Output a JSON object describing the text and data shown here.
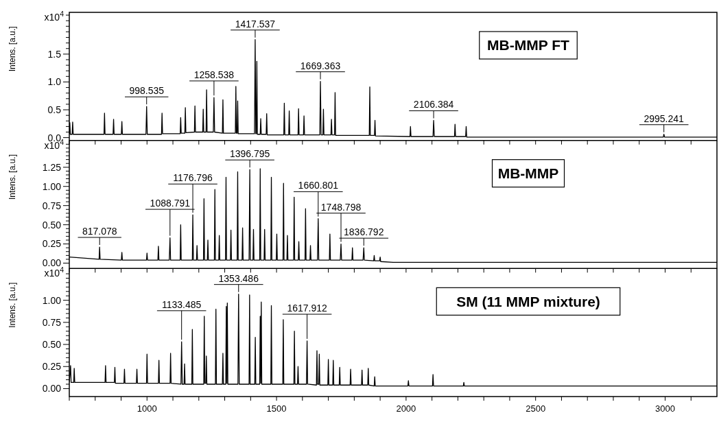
{
  "chart_data": [
    {
      "type": "line",
      "title": "MB-MMP FT",
      "ylabel": "Intens. [a.u.]",
      "tick_labels": "y",
      "annotations": [
        "x10$^{4}$",
        {
          "text": "998.535",
          "x": 998.535,
          "y": 0.56
        },
        {
          "text": "1258.538",
          "x": 1258.538,
          "y": 0.72
        },
        {
          "text": "1417.537",
          "x": 1417.537,
          "y": 1.76
        },
        {
          "text": "1669.363",
          "x": 1669.363,
          "y": 1.01
        },
        {
          "text": "2106.384",
          "x": 2106.384,
          "y": 0.31
        },
        {
          "text": "2995.241",
          "x": 2995.241,
          "y": 0.06
        }
      ],
      "xlim": [
        700,
        3200
      ],
      "xticks": [
        {
          "value": 700,
          "label": null
        },
        {
          "value": 800,
          "label": null
        },
        {
          "value": 900,
          "label": null
        },
        1000,
        {
          "value": 1100,
          "label": null
        },
        {
          "value": 1200,
          "label": null
        },
        {
          "value": 1300,
          "label": null
        },
        {
          "value": 1400,
          "label": null
        },
        1500,
        {
          "value": 1600,
          "label": null
        },
        {
          "value": 1700,
          "label": null
        },
        {
          "value": 1800,
          "label": null
        },
        {
          "value": 1900,
          "label": null
        },
        2000,
        {
          "value": 2100,
          "label": null
        },
        {
          "value": 2200,
          "label": null
        },
        {
          "value": 2300,
          "label": null
        },
        {
          "value": 2400,
          "label": null
        },
        2500,
        {
          "value": 2600,
          "label": null
        },
        {
          "value": 2700,
          "label": null
        },
        {
          "value": 2800,
          "label": null
        },
        {
          "value": 2900,
          "label": null
        },
        3000,
        {
          "value": 3100,
          "label": null
        }
      ],
      "ylim": [
        -0.05,
        2.25
      ],
      "yticks": [
        {
          "value": 0,
          "label": "0.0"
        },
        {
          "value": 0.1,
          "label": null
        },
        {
          "value": 0.2,
          "label": null
        },
        {
          "value": 0.3,
          "label": null
        },
        {
          "value": 0.4,
          "label": null
        },
        0.5,
        {
          "value": 0.6,
          "label": null
        },
        {
          "value": 0.7,
          "label": null
        },
        {
          "value": 0.8,
          "label": null
        },
        {
          "value": 0.9,
          "label": null
        },
        {
          "value": 1,
          "label": "1.0"
        },
        {
          "value": 1.1,
          "label": null
        },
        {
          "value": 1.2,
          "label": null
        },
        {
          "value": 1.3,
          "label": null
        },
        {
          "value": 1.4,
          "label": null
        },
        1.5,
        {
          "value": 1.6,
          "label": null
        },
        {
          "value": 1.7,
          "label": null
        },
        {
          "value": 1.8,
          "label": null
        },
        {
          "value": 1.9,
          "label": null
        },
        {
          "value": 2,
          "label": null
        },
        {
          "value": 2.1,
          "label": null
        },
        {
          "value": 2.2,
          "label": null
        }
      ],
      "x": [
        700,
        702,
        704,
        711,
        713,
        715,
        834,
        836,
        838,
        869,
        871,
        873,
        901,
        903,
        905,
        996,
        998.5,
        1001,
        1056,
        1058,
        1060,
        1128,
        1130,
        1132,
        1146,
        1148,
        1150,
        1183,
        1185,
        1187,
        1215,
        1217,
        1219,
        1228,
        1230,
        1232,
        1256,
        1258.5,
        1261,
        1291,
        1293,
        1295,
        1341,
        1343,
        1345,
        1348,
        1350,
        1352,
        1415,
        1417.5,
        1420,
        1422,
        1424,
        1426,
        1437,
        1439,
        1441,
        1460,
        1462,
        1464,
        1528,
        1530,
        1532,
        1547,
        1549,
        1551,
        1583,
        1585,
        1587,
        1604,
        1606,
        1608,
        1667,
        1669.4,
        1672,
        1679,
        1681,
        1683,
        1710,
        1712,
        1714,
        1724,
        1726,
        1728,
        1858,
        1860,
        1862,
        1878,
        1880,
        1882,
        2015,
        2017,
        2019,
        2104,
        2106.4,
        2109,
        2187,
        2189,
        2191,
        2230,
        2232,
        2234,
        2993,
        2995.2,
        2998,
        3200
      ],
      "series": [
        {
          "color": "#000000",
          "values": [
            0.06,
            0.27,
            0.06,
            0.06,
            0.28,
            0.06,
            0.06,
            0.44,
            0.06,
            0.06,
            0.33,
            0.06,
            0.06,
            0.29,
            0.06,
            0.06,
            0.56,
            0.06,
            0.06,
            0.44,
            0.07,
            0.07,
            0.36,
            0.08,
            0.08,
            0.54,
            0.09,
            0.1,
            0.57,
            0.1,
            0.1,
            0.51,
            0.1,
            0.1,
            0.86,
            0.1,
            0.1,
            0.72,
            0.1,
            0.08,
            0.68,
            0.08,
            0.08,
            0.92,
            0.08,
            0.08,
            0.66,
            0.07,
            0.07,
            1.76,
            0.07,
            0.07,
            1.37,
            0.06,
            0.06,
            0.34,
            0.06,
            0.06,
            0.43,
            0.05,
            0.05,
            0.62,
            0.05,
            0.05,
            0.48,
            0.05,
            0.05,
            0.52,
            0.05,
            0.05,
            0.39,
            0.05,
            0.05,
            1.01,
            0.05,
            0.05,
            0.51,
            0.05,
            0.05,
            0.33,
            0.05,
            0.05,
            0.81,
            0.04,
            0.04,
            0.91,
            0.04,
            0.04,
            0.31,
            0.03,
            0.02,
            0.2,
            0.02,
            0.02,
            0.31,
            0.02,
            0.02,
            0.24,
            0.02,
            0.02,
            0.2,
            0.01,
            0.01,
            0.06,
            0.01,
            0.01
          ]
        }
      ]
    },
    {
      "type": "line",
      "title": "MB-MMP",
      "ylabel": "Intens. [a.u.]",
      "tick_labels": "y",
      "annotations": [
        "x10$^{4}$",
        {
          "text": "817.078",
          "x": 817.078,
          "y": 0.21
        },
        {
          "text": "1088.791",
          "x": 1088.791,
          "y": 0.33
        },
        {
          "text": "1176.796",
          "x": 1176.796,
          "y": 0.63
        },
        {
          "text": "1396.795",
          "x": 1396.795,
          "y": 1.22
        },
        {
          "text": "1660.801",
          "x": 1660.801,
          "y": 0.58
        },
        {
          "text": "1748.798",
          "x": 1748.798,
          "y": 0.25
        },
        {
          "text": "1836.792",
          "x": 1836.792,
          "y": 0.2
        }
      ],
      "xlim": [
        700,
        3200
      ],
      "xticks": [
        {
          "value": 700,
          "label": null
        },
        {
          "value": 800,
          "label": null
        },
        {
          "value": 900,
          "label": null
        },
        1000,
        {
          "value": 1100,
          "label": null
        },
        {
          "value": 1200,
          "label": null
        },
        {
          "value": 1300,
          "label": null
        },
        {
          "value": 1400,
          "label": null
        },
        1500,
        {
          "value": 1600,
          "label": null
        },
        {
          "value": 1700,
          "label": null
        },
        {
          "value": 1800,
          "label": null
        },
        {
          "value": 1900,
          "label": null
        },
        2000,
        {
          "value": 2100,
          "label": null
        },
        {
          "value": 2200,
          "label": null
        },
        {
          "value": 2300,
          "label": null
        },
        {
          "value": 2400,
          "label": null
        },
        2500,
        {
          "value": 2600,
          "label": null
        },
        {
          "value": 2700,
          "label": null
        },
        {
          "value": 2800,
          "label": null
        },
        {
          "value": 2900,
          "label": null
        },
        3000,
        {
          "value": 3100,
          "label": null
        }
      ],
      "ylim": [
        -0.07,
        1.6
      ],
      "yticks": [
        {
          "value": 0,
          "label": "0.00"
        },
        {
          "value": 0.05,
          "label": null
        },
        {
          "value": 0.1,
          "label": null
        },
        {
          "value": 0.15,
          "label": null
        },
        {
          "value": 0.2,
          "label": null
        },
        0.25,
        {
          "value": 0.3,
          "label": null
        },
        {
          "value": 0.35,
          "label": null
        },
        {
          "value": 0.4,
          "label": null
        },
        {
          "value": 0.45,
          "label": null
        },
        {
          "value": 0.5,
          "label": "0.50"
        },
        {
          "value": 0.55,
          "label": null
        },
        {
          "value": 0.6,
          "label": null
        },
        {
          "value": 0.65,
          "label": null
        },
        {
          "value": 0.7,
          "label": null
        },
        0.75,
        {
          "value": 0.8,
          "label": null
        },
        {
          "value": 0.85,
          "label": null
        },
        {
          "value": 0.9,
          "label": null
        },
        {
          "value": 0.95,
          "label": null
        },
        {
          "value": 1,
          "label": "1.00"
        },
        {
          "value": 1.05,
          "label": null
        },
        {
          "value": 1.1,
          "label": null
        },
        {
          "value": 1.15,
          "label": null
        },
        {
          "value": 1.2,
          "label": null
        },
        1.25,
        {
          "value": 1.3,
          "label": null
        },
        {
          "value": 1.35,
          "label": null
        },
        {
          "value": 1.4,
          "label": null
        },
        {
          "value": 1.45,
          "label": null
        },
        {
          "value": 1.5,
          "label": null
        },
        {
          "value": 1.55,
          "label": null
        }
      ],
      "x": [
        700,
        815,
        817,
        819,
        901,
        903,
        905,
        998,
        1000,
        1002,
        1042,
        1044,
        1046,
        1086,
        1088.8,
        1091,
        1128,
        1130,
        1132,
        1175,
        1176.8,
        1179,
        1191,
        1193,
        1195,
        1218,
        1220,
        1222,
        1233,
        1235,
        1237,
        1260,
        1262,
        1264,
        1277,
        1279,
        1281,
        1303,
        1305,
        1307,
        1322,
        1324,
        1326,
        1348,
        1350,
        1352,
        1367,
        1369,
        1371,
        1394,
        1396.8,
        1399,
        1409,
        1411,
        1413,
        1435,
        1437,
        1439,
        1452,
        1454,
        1456,
        1478,
        1480,
        1482,
        1499,
        1501,
        1503,
        1525,
        1527,
        1529,
        1540,
        1542,
        1544,
        1566,
        1568,
        1570,
        1584,
        1586,
        1588,
        1610,
        1612,
        1614,
        1629,
        1631,
        1633,
        1658,
        1660.8,
        1663,
        1704,
        1706,
        1708,
        1746,
        1748.8,
        1751,
        1791,
        1793,
        1795,
        1834,
        1836.8,
        1839,
        1875,
        1877,
        1879,
        1898,
        1900,
        1902,
        1950,
        3200
      ],
      "series": [
        {
          "color": "#000000",
          "values": [
            0.08,
            0.05,
            0.21,
            0.05,
            0.04,
            0.14,
            0.04,
            0.04,
            0.13,
            0.04,
            0.04,
            0.22,
            0.04,
            0.04,
            0.33,
            0.04,
            0.04,
            0.5,
            0.04,
            0.04,
            0.63,
            0.04,
            0.04,
            0.23,
            0.04,
            0.04,
            0.84,
            0.04,
            0.04,
            0.3,
            0.04,
            0.04,
            0.96,
            0.04,
            0.04,
            0.36,
            0.04,
            0.04,
            1.12,
            0.04,
            0.04,
            0.43,
            0.04,
            0.04,
            1.19,
            0.04,
            0.04,
            0.46,
            0.04,
            0.04,
            1.22,
            0.04,
            0.04,
            0.44,
            0.04,
            0.04,
            1.23,
            0.04,
            0.04,
            0.44,
            0.04,
            0.04,
            1.12,
            0.04,
            0.04,
            0.38,
            0.04,
            0.04,
            1.04,
            0.04,
            0.04,
            0.36,
            0.04,
            0.04,
            0.86,
            0.04,
            0.04,
            0.28,
            0.04,
            0.04,
            0.71,
            0.04,
            0.04,
            0.23,
            0.04,
            0.04,
            0.58,
            0.04,
            0.04,
            0.38,
            0.04,
            0.04,
            0.25,
            0.04,
            0.04,
            0.2,
            0.04,
            0.04,
            0.2,
            0.04,
            0.03,
            0.1,
            0.03,
            0.03,
            0.08,
            0.02,
            0.01,
            0.01
          ]
        }
      ]
    },
    {
      "type": "line",
      "title": "SM (11 MMP mixture)",
      "ylabel": "Intens. [a.u.]",
      "annotations": [
        "x10$^{4}$",
        {
          "text": "1133.485",
          "x": 1133.485,
          "y": 0.53
        },
        {
          "text": "1353.486",
          "x": 1353.486,
          "y": 1.07
        },
        {
          "text": "1617.912",
          "x": 1617.912,
          "y": 0.54
        }
      ],
      "xlim": [
        700,
        3200
      ],
      "xticks": [
        {
          "value": 700,
          "label": null
        },
        {
          "value": 800,
          "label": null
        },
        {
          "value": 900,
          "label": null
        },
        1000,
        {
          "value": 1100,
          "label": null
        },
        {
          "value": 1200,
          "label": null
        },
        {
          "value": 1300,
          "label": null
        },
        {
          "value": 1400,
          "label": null
        },
        1500,
        {
          "value": 1600,
          "label": null
        },
        {
          "value": 1700,
          "label": null
        },
        {
          "value": 1800,
          "label": null
        },
        {
          "value": 1900,
          "label": null
        },
        2000,
        {
          "value": 2100,
          "label": null
        },
        {
          "value": 2200,
          "label": null
        },
        {
          "value": 2300,
          "label": null
        },
        {
          "value": 2400,
          "label": null
        },
        2500,
        {
          "value": 2600,
          "label": null
        },
        {
          "value": 2700,
          "label": null
        },
        {
          "value": 2800,
          "label": null
        },
        {
          "value": 2900,
          "label": null
        },
        3000,
        {
          "value": 3100,
          "label": null
        }
      ],
      "ylim": [
        -0.09,
        1.36
      ],
      "yticks": [
        {
          "value": 0,
          "label": "0.00"
        },
        {
          "value": 0.05,
          "label": null
        },
        {
          "value": 0.1,
          "label": null
        },
        {
          "value": 0.15,
          "label": null
        },
        {
          "value": 0.2,
          "label": null
        },
        0.25,
        {
          "value": 0.3,
          "label": null
        },
        {
          "value": 0.35,
          "label": null
        },
        {
          "value": 0.4,
          "label": null
        },
        {
          "value": 0.45,
          "label": null
        },
        {
          "value": 0.5,
          "label": "0.50"
        },
        {
          "value": 0.55,
          "label": null
        },
        {
          "value": 0.6,
          "label": null
        },
        {
          "value": 0.65,
          "label": null
        },
        {
          "value": 0.7,
          "label": null
        },
        0.75,
        {
          "value": 0.8,
          "label": null
        },
        {
          "value": 0.85,
          "label": null
        },
        {
          "value": 0.9,
          "label": null
        },
        {
          "value": 0.95,
          "label": null
        },
        {
          "value": 1,
          "label": "1.00"
        },
        {
          "value": 1.05,
          "label": null
        },
        {
          "value": 1.1,
          "label": null
        },
        {
          "value": 1.15,
          "label": null
        },
        {
          "value": 1.2,
          "label": null
        },
        {
          "value": 1.25,
          "label": null
        },
        {
          "value": 1.3,
          "label": null
        }
      ],
      "x": [
        700,
        705,
        707,
        717,
        719,
        721,
        838,
        840,
        842,
        874,
        876,
        878,
        911,
        913,
        915,
        959,
        961,
        963,
        998,
        1000,
        1002,
        1044,
        1046,
        1048,
        1089,
        1091,
        1093,
        1131,
        1133.5,
        1136,
        1143,
        1145,
        1147,
        1173,
        1175,
        1177,
        1219,
        1221,
        1223,
        1227,
        1229,
        1231,
        1264,
        1266,
        1268,
        1291,
        1293,
        1295,
        1304,
        1306,
        1308,
        1310,
        1312,
        1351,
        1353.5,
        1356,
        1394,
        1396,
        1398,
        1416,
        1418,
        1420,
        1435,
        1437,
        1439,
        1441,
        1443,
        1478,
        1480,
        1482,
        1524,
        1526,
        1528,
        1567,
        1569,
        1571,
        1581,
        1583,
        1585,
        1615.5,
        1617.9,
        1620,
        1654,
        1656,
        1658,
        1663,
        1665,
        1667,
        1698,
        1700,
        1702,
        1717,
        1719,
        1721,
        1742,
        1744,
        1746,
        1784,
        1786,
        1788,
        1828,
        1830,
        1832,
        1852,
        1854,
        1856,
        1877,
        1879,
        1881,
        2007,
        2009,
        2011,
        2102,
        2104,
        2106,
        2221,
        2223,
        2225,
        3200
      ],
      "series": [
        {
          "color": "#000000",
          "values": [
            0.07,
            0.26,
            0.07,
            0.07,
            0.23,
            0.07,
            0.07,
            0.26,
            0.07,
            0.07,
            0.24,
            0.06,
            0.06,
            0.22,
            0.06,
            0.06,
            0.22,
            0.06,
            0.06,
            0.39,
            0.06,
            0.06,
            0.32,
            0.06,
            0.06,
            0.4,
            0.06,
            0.05,
            0.53,
            0.05,
            0.05,
            0.28,
            0.05,
            0.05,
            0.67,
            0.05,
            0.05,
            0.82,
            0.06,
            0.06,
            0.37,
            0.05,
            0.05,
            0.9,
            0.05,
            0.05,
            0.4,
            0.05,
            0.05,
            0.93,
            0.06,
            0.97,
            0.05,
            0.05,
            1.07,
            0.05,
            0.05,
            1.06,
            0.05,
            0.05,
            0.58,
            0.05,
            0.05,
            0.82,
            0.06,
            0.98,
            0.05,
            0.05,
            0.94,
            0.05,
            0.05,
            0.78,
            0.05,
            0.05,
            0.65,
            0.05,
            0.05,
            0.25,
            0.05,
            0.05,
            0.54,
            0.05,
            0.04,
            0.43,
            0.05,
            0.05,
            0.39,
            0.04,
            0.04,
            0.33,
            0.04,
            0.04,
            0.32,
            0.04,
            0.04,
            0.24,
            0.04,
            0.04,
            0.22,
            0.04,
            0.04,
            0.21,
            0.04,
            0.04,
            0.23,
            0.04,
            0.03,
            0.135,
            0.03,
            0.03,
            0.09,
            0.03,
            0.03,
            0.16,
            0.03,
            0.03,
            0.07,
            0.03,
            0.03
          ]
        }
      ]
    }
  ]
}
